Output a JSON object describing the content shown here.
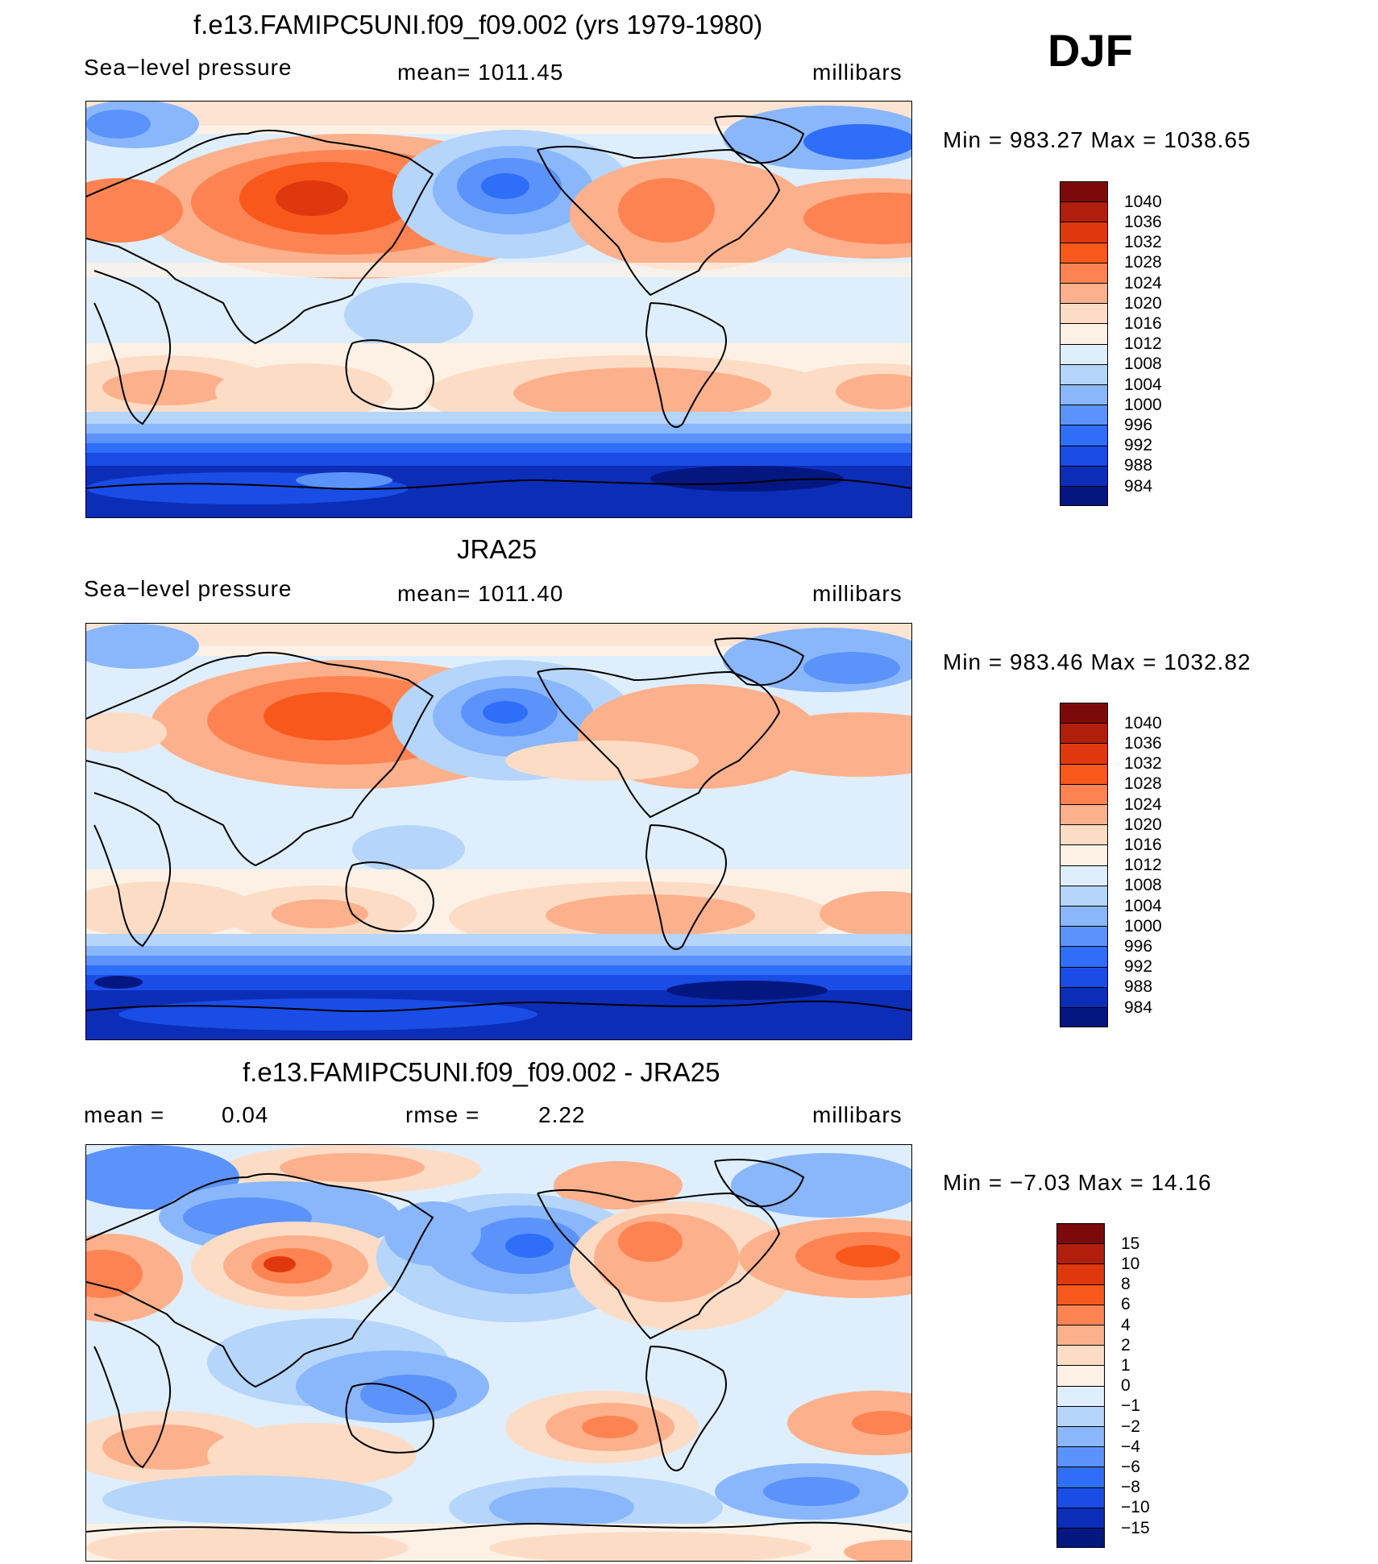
{
  "season": "DJF",
  "panels": [
    {
      "title": "f.e13.FAMIPC5UNI.f09_f09.002 (yrs 1979-1980)",
      "left_label": "Sea−level pressure",
      "center_label": "mean=  1011.45",
      "units": "millibars",
      "minmax": "Min  =  983.27  Max  =  1038.65",
      "colorbar": {
        "colors": [
          "#7d0a0a",
          "#b21e0c",
          "#df380e",
          "#f8581c",
          "#fd8452",
          "#fdb08c",
          "#fddcc5",
          "#fdf1e6",
          "#dfeefc",
          "#b5d5fb",
          "#8ab7fb",
          "#5c93fa",
          "#2f6ef8",
          "#1a4de6",
          "#0c2db8",
          "#041780"
        ],
        "labels": [
          "1040",
          "1036",
          "1032",
          "1028",
          "1024",
          "1020",
          "1016",
          "1012",
          "1008",
          "1004",
          "1000",
          "996",
          "992",
          "988",
          "984"
        ]
      }
    },
    {
      "title": "JRA25",
      "left_label": "Sea−level pressure",
      "center_label": "mean=  1011.40",
      "units": "millibars",
      "minmax": "Min  =  983.46  Max  =  1032.82",
      "colorbar": {
        "colors": [
          "#7d0a0a",
          "#b21e0c",
          "#df380e",
          "#f8581c",
          "#fd8452",
          "#fdb08c",
          "#fddcc5",
          "#fdf1e6",
          "#dfeefc",
          "#b5d5fb",
          "#8ab7fb",
          "#5c93fa",
          "#2f6ef8",
          "#1a4de6",
          "#0c2db8",
          "#041780"
        ],
        "labels": [
          "1040",
          "1036",
          "1032",
          "1028",
          "1024",
          "1020",
          "1016",
          "1012",
          "1008",
          "1004",
          "1000",
          "996",
          "992",
          "988",
          "984"
        ]
      }
    },
    {
      "title": "f.e13.FAMIPC5UNI.f09_f09.002 - JRA25",
      "left_label": "mean  =",
      "left_value": "0.04",
      "center_label": "rmse  =",
      "center_value": "2.22",
      "units": "millibars",
      "minmax": "Min  =   −7.03  Max  =    14.16",
      "colorbar": {
        "colors": [
          "#7d0a0a",
          "#b21e0c",
          "#df380e",
          "#f8581c",
          "#fd8452",
          "#fdb08c",
          "#fddcc5",
          "#fdf1e6",
          "#dfeefc",
          "#b5d5fb",
          "#8ab7fb",
          "#5c93fa",
          "#2f6ef8",
          "#1a4de6",
          "#0c2db8",
          "#041780"
        ],
        "labels": [
          "15",
          "10",
          "8",
          "6",
          "4",
          "2",
          "1",
          "0",
          "−1",
          "−2",
          "−4",
          "−6",
          "−8",
          "−10",
          "−15"
        ]
      }
    }
  ]
}
